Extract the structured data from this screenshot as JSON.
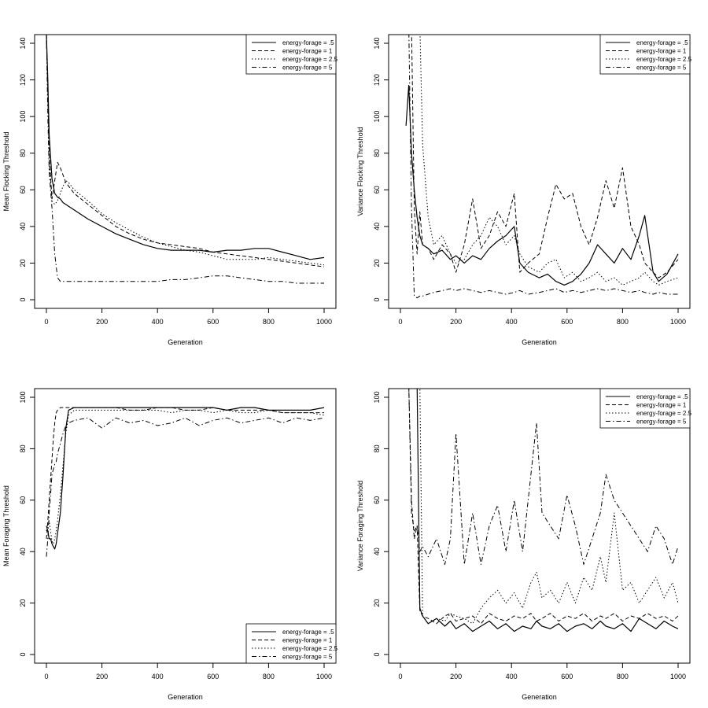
{
  "figure": {
    "legend_entries": [
      "energy-forage = .5",
      "energy-forage = 1",
      "energy-forage = 2.5",
      "energy-forage = 5"
    ]
  },
  "chart_data": [
    {
      "type": "line",
      "xlabel": "Generation",
      "ylabel": "Mean Flocking Threshold",
      "xlim": [
        0,
        1000
      ],
      "ylim": [
        0,
        140
      ],
      "xticks": [
        "0",
        "200",
        "400",
        "600",
        "800",
        "1000"
      ],
      "yticks": [
        "0",
        "20",
        "40",
        "60",
        "80",
        "100",
        "120",
        "140"
      ],
      "legend_position": "top-right",
      "x": [
        0,
        5,
        10,
        20,
        30,
        40,
        50,
        60,
        70,
        80,
        100,
        150,
        200,
        250,
        300,
        350,
        400,
        450,
        500,
        550,
        600,
        650,
        700,
        750,
        800,
        850,
        900,
        950,
        1000
      ],
      "series": [
        {
          "name": "energy-forage = .5",
          "values": [
            145,
            120,
            90,
            66,
            58,
            56,
            55,
            53,
            52,
            51,
            49,
            44,
            40,
            36,
            33,
            30,
            28,
            27,
            27,
            27,
            26,
            27,
            27,
            28,
            28,
            26,
            24,
            22,
            23
          ]
        },
        {
          "name": "energy-forage = 1",
          "values": [
            145,
            115,
            80,
            55,
            65,
            75,
            72,
            68,
            64,
            62,
            58,
            52,
            46,
            40,
            36,
            33,
            31,
            30,
            29,
            28,
            26,
            25,
            24,
            23,
            22,
            21,
            20,
            19,
            18
          ]
        },
        {
          "name": "energy-forage = 2.5",
          "values": [
            145,
            110,
            75,
            54,
            52,
            54,
            58,
            62,
            65,
            64,
            60,
            54,
            47,
            42,
            38,
            34,
            31,
            29,
            27,
            26,
            24,
            22,
            22,
            22,
            23,
            22,
            21,
            20,
            19
          ]
        },
        {
          "name": "energy-forage = 5",
          "values": [
            145,
            100,
            70,
            50,
            25,
            12,
            10,
            10,
            10,
            10,
            10,
            10,
            10,
            10,
            10,
            10,
            10,
            11,
            11,
            12,
            13,
            13,
            12,
            11,
            10,
            10,
            9,
            9,
            9
          ]
        }
      ]
    },
    {
      "type": "line",
      "xlabel": "Generation",
      "ylabel": "Variance Flocking Threshold",
      "xlim": [
        0,
        1000
      ],
      "ylim": [
        0,
        140
      ],
      "xticks": [
        "0",
        "200",
        "400",
        "600",
        "800",
        "1000"
      ],
      "yticks": [
        "0",
        "20",
        "40",
        "60",
        "80",
        "100",
        "120",
        "140"
      ],
      "legend_position": "top-right",
      "x": [
        20,
        30,
        40,
        50,
        60,
        70,
        80,
        100,
        120,
        150,
        180,
        200,
        230,
        260,
        290,
        320,
        350,
        380,
        410,
        430,
        460,
        500,
        530,
        560,
        590,
        620,
        650,
        680,
        710,
        740,
        770,
        800,
        830,
        860,
        880,
        910,
        930,
        960,
        1000
      ],
      "series": [
        {
          "name": "energy-forage = .5",
          "values": [
            95,
            117,
            80,
            60,
            45,
            35,
            30,
            28,
            25,
            27,
            22,
            24,
            20,
            24,
            22,
            28,
            32,
            35,
            40,
            20,
            15,
            12,
            14,
            10,
            8,
            10,
            14,
            20,
            30,
            25,
            20,
            28,
            22,
            35,
            46,
            15,
            10,
            14,
            25
          ]
        },
        {
          "name": "energy-forage = 1",
          "values": [
            150,
            145,
            150,
            50,
            25,
            48,
            30,
            28,
            22,
            30,
            25,
            15,
            30,
            55,
            28,
            35,
            48,
            40,
            58,
            15,
            20,
            25,
            45,
            63,
            55,
            58,
            40,
            30,
            45,
            65,
            50,
            72,
            40,
            30,
            20,
            15,
            12,
            15,
            22
          ]
        },
        {
          "name": "energy-forage = 2.5",
          "values": [
            150,
            150,
            150,
            150,
            150,
            150,
            85,
            45,
            30,
            35,
            25,
            20,
            22,
            30,
            35,
            45,
            40,
            30,
            35,
            25,
            18,
            15,
            20,
            22,
            12,
            15,
            10,
            12,
            15,
            10,
            12,
            8,
            10,
            12,
            15,
            10,
            8,
            10,
            12
          ]
        },
        {
          "name": "energy-forage = 5",
          "values": [
            150,
            150,
            50,
            2,
            1,
            2,
            2,
            3,
            4,
            5,
            6,
            5,
            6,
            5,
            4,
            5,
            4,
            3,
            4,
            5,
            3,
            4,
            5,
            6,
            4,
            5,
            4,
            5,
            6,
            5,
            6,
            5,
            4,
            5,
            4,
            3,
            4,
            3,
            3
          ]
        }
      ]
    },
    {
      "type": "line",
      "xlabel": "Generation",
      "ylabel": "Mean Foraging Threshold",
      "xlim": [
        0,
        1000
      ],
      "ylim": [
        0,
        100
      ],
      "xticks": [
        "0",
        "200",
        "400",
        "600",
        "800",
        "1000"
      ],
      "yticks": [
        "0",
        "20",
        "40",
        "60",
        "80",
        "100"
      ],
      "legend_position": "bottom-right",
      "x": [
        0,
        5,
        10,
        15,
        20,
        25,
        30,
        35,
        40,
        50,
        60,
        70,
        80,
        100,
        150,
        200,
        250,
        300,
        350,
        400,
        450,
        500,
        550,
        600,
        650,
        700,
        750,
        800,
        850,
        900,
        950,
        1000
      ],
      "series": [
        {
          "name": "energy-forage = .5",
          "values": [
            50,
            48,
            45,
            45,
            43,
            42,
            41,
            43,
            47,
            55,
            70,
            88,
            95,
            96,
            96,
            96,
            96,
            96,
            96,
            96,
            96,
            96,
            96,
            96,
            95,
            96,
            96,
            95,
            95,
            95,
            95,
            96
          ]
        },
        {
          "name": "energy-forage = 1",
          "values": [
            45,
            52,
            60,
            68,
            76,
            84,
            90,
            94,
            95,
            96,
            96,
            96,
            96,
            96,
            96,
            96,
            96,
            95,
            95,
            96,
            96,
            95,
            95,
            96,
            95,
            95,
            95,
            95,
            94,
            94,
            94,
            94
          ]
        },
        {
          "name": "energy-forage = 2.5",
          "values": [
            48,
            50,
            52,
            48,
            44,
            43,
            45,
            48,
            52,
            62,
            74,
            86,
            93,
            95,
            95,
            95,
            95,
            95,
            95,
            95,
            94,
            95,
            95,
            94,
            95,
            94,
            94,
            95,
            94,
            94,
            94,
            93
          ]
        },
        {
          "name": "energy-forage = 5",
          "values": [
            38,
            45,
            55,
            62,
            70,
            72,
            74,
            75,
            78,
            82,
            86,
            89,
            90,
            91,
            92,
            88,
            92,
            90,
            91,
            89,
            90,
            92,
            89,
            91,
            92,
            90,
            91,
            92,
            90,
            92,
            91,
            92
          ]
        }
      ]
    },
    {
      "type": "line",
      "xlabel": "Generation",
      "ylabel": "Variance Foraging Threshold",
      "xlim": [
        0,
        1000
      ],
      "ylim": [
        0,
        100
      ],
      "xticks": [
        "0",
        "200",
        "400",
        "600",
        "800",
        "1000"
      ],
      "yticks": [
        "0",
        "20",
        "40",
        "60",
        "80",
        "100"
      ],
      "legend_position": "top-right",
      "x": [
        20,
        30,
        40,
        50,
        60,
        70,
        80,
        100,
        130,
        160,
        180,
        200,
        230,
        260,
        290,
        320,
        350,
        380,
        410,
        440,
        470,
        490,
        510,
        540,
        570,
        600,
        630,
        660,
        690,
        720,
        740,
        770,
        800,
        830,
        860,
        890,
        920,
        950,
        980,
        1000
      ],
      "series": [
        {
          "name": "energy-forage = .5",
          "values": [
            105,
            105,
            105,
            105,
            105,
            18,
            15,
            12,
            14,
            11,
            13,
            10,
            12,
            9,
            11,
            13,
            10,
            12,
            9,
            11,
            10,
            13,
            11,
            10,
            12,
            9,
            11,
            12,
            10,
            13,
            11,
            10,
            12,
            9,
            14,
            12,
            10,
            13,
            11,
            10
          ]
        },
        {
          "name": "energy-forage = 1",
          "values": [
            105,
            105,
            60,
            45,
            50,
            17,
            15,
            14,
            12,
            15,
            16,
            13,
            14,
            15,
            12,
            16,
            14,
            13,
            15,
            14,
            16,
            13,
            14,
            16,
            13,
            15,
            14,
            16,
            13,
            15,
            14,
            16,
            13,
            15,
            14,
            16,
            14,
            15,
            13,
            15
          ]
        },
        {
          "name": "energy-forage = 2.5",
          "values": [
            105,
            105,
            105,
            105,
            105,
            105,
            15,
            12,
            14,
            13,
            16,
            15,
            14,
            12,
            18,
            22,
            25,
            20,
            24,
            18,
            28,
            32,
            22,
            25,
            20,
            28,
            20,
            30,
            25,
            38,
            28,
            55,
            25,
            28,
            20,
            25,
            30,
            22,
            28,
            20
          ]
        },
        {
          "name": "energy-forage = 5",
          "values": [
            105,
            105,
            55,
            48,
            50,
            40,
            42,
            38,
            45,
            35,
            45,
            86,
            35,
            55,
            35,
            50,
            58,
            40,
            60,
            40,
            70,
            90,
            55,
            50,
            45,
            62,
            50,
            35,
            45,
            55,
            70,
            60,
            55,
            50,
            45,
            40,
            50,
            45,
            35,
            42
          ]
        }
      ]
    }
  ]
}
